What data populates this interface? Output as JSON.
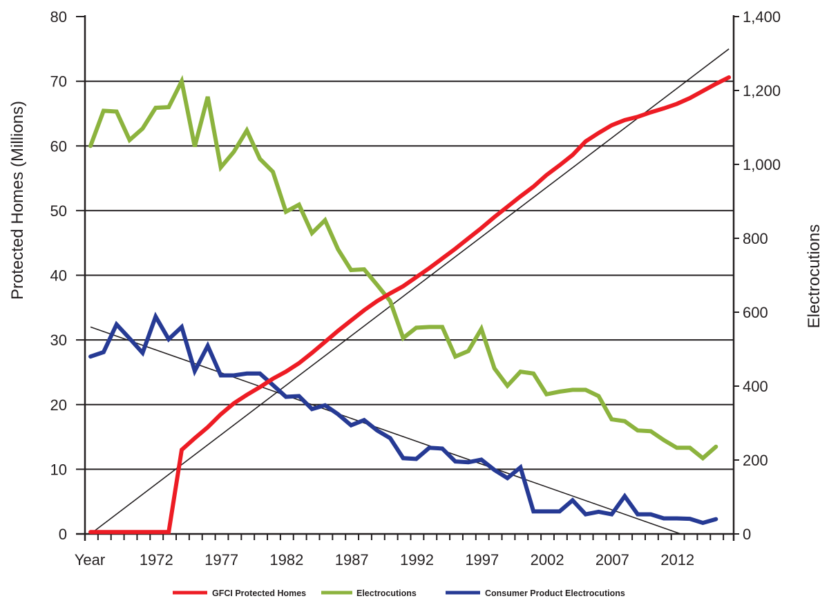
{
  "chart_data": {
    "type": "line",
    "title": "",
    "xlabel": "Year",
    "ylabel_left": "Protected Homes (Millions)",
    "ylabel_right": "Electrocutions",
    "ylim_left": [
      0,
      80
    ],
    "ylim_right": [
      0,
      1400
    ],
    "yticks_left": [
      "0",
      "10",
      "20",
      "30",
      "40",
      "50",
      "60",
      "70",
      "80"
    ],
    "yticks_right": [
      "0",
      "200",
      "400",
      "600",
      "800",
      "1,000",
      "1,200",
      "1,400"
    ],
    "xtick_labels": [
      "Year",
      "1972",
      "1977",
      "1982",
      "1987",
      "1992",
      "1997",
      "2002",
      "2007",
      "2012"
    ],
    "grid": "horizontal",
    "legend_position": "bottom",
    "colors": {
      "gfci": "#ed1c24",
      "electrocutions": "#8cb33e",
      "consumer": "#263a94",
      "trend": "#231f20"
    },
    "series": [
      {
        "name": "GFCI Protected Homes",
        "axis": "left",
        "start_year": 1967,
        "values": [
          0.3,
          0.3,
          0.3,
          0.3,
          0.3,
          0.3,
          0.3,
          13,
          14.8,
          16.5,
          18.5,
          20.2,
          21.5,
          22.7,
          24,
          25.1,
          26.4,
          28,
          29.7,
          31.4,
          33,
          34.6,
          36,
          37.2,
          38.3,
          39.7,
          41.1,
          42.6,
          44.1,
          45.7,
          47.3,
          49,
          50.6,
          52.2,
          53.7,
          55.5,
          57,
          58.6,
          60.7,
          62,
          63.2,
          64,
          64.5,
          65.2,
          65.8,
          66.5,
          67.4,
          68.5,
          69.6,
          70.6
        ]
      },
      {
        "name": "Electrocutions",
        "axis": "right",
        "start_year": 1967,
        "values": [
          1050,
          1145,
          1143,
          1066,
          1097,
          1153,
          1155,
          1225,
          1048,
          1183,
          992,
          1034,
          1092,
          1015,
          980,
          872,
          891,
          814,
          849,
          770,
          714,
          716,
          674,
          630,
          530,
          558,
          560,
          560,
          480,
          495,
          555,
          448,
          401,
          439,
          434,
          378,
          385,
          390,
          390,
          373,
          310,
          305,
          280,
          278,
          254,
          233,
          233,
          205,
          236
        ]
      },
      {
        "name": "Consumer Product Electrocutions",
        "axis": "right",
        "start_year": 1967,
        "values": [
          480,
          492,
          567,
          529,
          490,
          588,
          527,
          560,
          441,
          509,
          429,
          429,
          434,
          434,
          403,
          371,
          373,
          338,
          348,
          324,
          294,
          308,
          280,
          259,
          205,
          203,
          233,
          231,
          196,
          194,
          201,
          173,
          151,
          180,
          61,
          61,
          61,
          91,
          53,
          60,
          53,
          102,
          53,
          53,
          42,
          42,
          41,
          30,
          40
        ]
      }
    ],
    "trendlines": [
      {
        "for": "GFCI Protected Homes",
        "axis": "left",
        "from": [
          1967,
          0
        ],
        "to": [
          2016,
          75
        ]
      },
      {
        "for": "Consumer Product Electrocutions",
        "axis": "right",
        "from": [
          1967,
          560
        ],
        "to": [
          2012.3,
          0
        ]
      }
    ]
  }
}
